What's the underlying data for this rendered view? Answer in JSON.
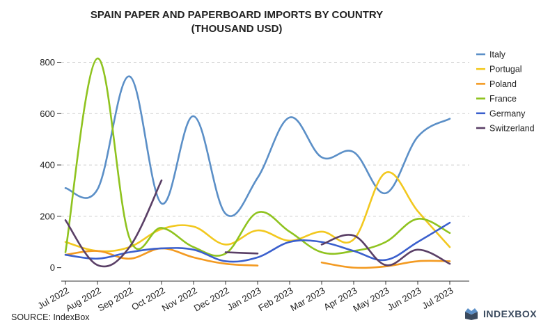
{
  "title_line1": "SPAIN PAPER AND PAPERBOARD IMPORTS BY COUNTRY",
  "title_line2": "(THOUSAND USD)",
  "source": "SOURCE: IndexBox",
  "logo_text": "INDEXBOX",
  "chart_data": {
    "type": "line",
    "title": "SPAIN PAPER AND PAPERBOARD IMPORTS BY COUNTRY (THOUSAND USD)",
    "xlabel": "",
    "ylabel": "",
    "categories": [
      "Jul 2022",
      "Aug 2022",
      "Sep 2022",
      "Oct 2022",
      "Nov 2022",
      "Dec 2022",
      "Jan 2023",
      "Feb 2023",
      "Mar 2023",
      "Apr 2023",
      "May 2023",
      "Jun 2023",
      "Jul 2023"
    ],
    "yticks": [
      0,
      200,
      400,
      600,
      800
    ],
    "ylim": [
      -20,
      880
    ],
    "grid": true,
    "legend_position": "right",
    "series": [
      {
        "name": "Italy",
        "color": "#5b8fc7",
        "values": [
          310,
          305,
          745,
          250,
          590,
          210,
          350,
          585,
          430,
          450,
          290,
          510,
          580
        ]
      },
      {
        "name": "Portugal",
        "color": "#f2c81f",
        "values": [
          100,
          65,
          80,
          150,
          160,
          90,
          145,
          105,
          140,
          110,
          370,
          220,
          80
        ]
      },
      {
        "name": "Poland",
        "color": "#f39a21",
        "values": [
          50,
          65,
          35,
          75,
          40,
          15,
          8,
          null,
          20,
          0,
          5,
          25,
          25
        ]
      },
      {
        "name": "France",
        "color": "#8fc31f",
        "values": [
          60,
          815,
          115,
          155,
          80,
          55,
          215,
          140,
          60,
          65,
          100,
          190,
          135
        ]
      },
      {
        "name": "Germany",
        "color": "#3a5fcd",
        "values": [
          50,
          35,
          60,
          75,
          70,
          25,
          40,
          100,
          100,
          65,
          30,
          100,
          175
        ]
      },
      {
        "name": "Switzerland",
        "color": "#5a3f66",
        "values": [
          185,
          10,
          80,
          340,
          null,
          60,
          55,
          null,
          90,
          125,
          10,
          70,
          15
        ]
      }
    ]
  }
}
